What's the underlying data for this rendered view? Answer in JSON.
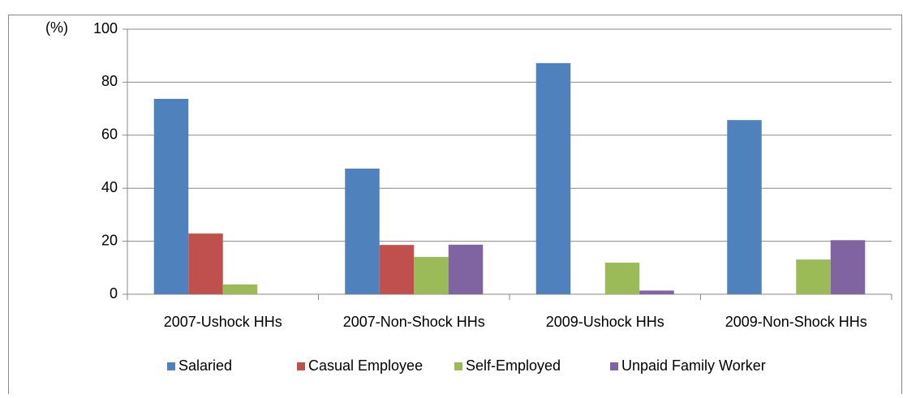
{
  "chart_data": {
    "type": "bar",
    "y_label": "(%)",
    "categories": [
      "2007-Ushock HHs",
      "2007-Non-Shock HHs",
      "2009-Ushock HHs",
      "2009-Non-Shock HHs"
    ],
    "series": [
      {
        "name": "Salaried",
        "color": "#4f81bd",
        "values": [
          73.7,
          47.4,
          87.2,
          65.7
        ]
      },
      {
        "name": "Casual Employee",
        "color": "#c0504d",
        "values": [
          22.9,
          18.6,
          0,
          0
        ]
      },
      {
        "name": "Self-Employed",
        "color": "#9bbb59",
        "values": [
          3.7,
          14.1,
          11.9,
          13.1
        ]
      },
      {
        "name": "Unpaid Family Worker",
        "color": "#8064a2",
        "values": [
          0,
          18.7,
          1.4,
          20.4
        ]
      }
    ],
    "ylim": [
      0,
      100
    ],
    "yticks": [
      0,
      20,
      40,
      60,
      80,
      100
    ],
    "grid": true,
    "legend": "bottom"
  }
}
